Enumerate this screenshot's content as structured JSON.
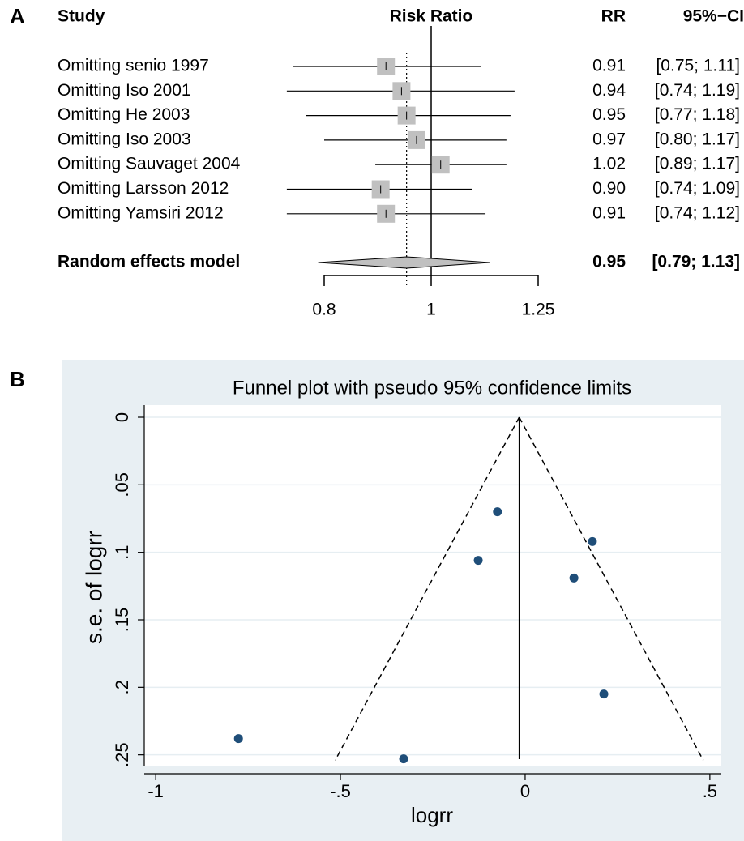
{
  "chart_data": [
    {
      "type": "forest",
      "panel_label": "A",
      "headers": {
        "study": "Study",
        "plot": "Risk Ratio",
        "estimate": "RR",
        "interval": "95%−CI"
      },
      "categories": [
        "Omitting senio 1997",
        "Omitting Iso 2001",
        "Omitting He 2003",
        "Omitting Iso 2003",
        "Omitting Sauvaget 2004",
        "Omitting Larsson 2012",
        "Omitting Yamsiri 2012"
      ],
      "values": [
        0.91,
        0.94,
        0.95,
        0.97,
        1.02,
        0.9,
        0.91
      ],
      "value_labels": [
        "0.91",
        "0.94",
        "0.95",
        "0.97",
        "1.02",
        "0.90",
        "0.91"
      ],
      "lower": [
        0.75,
        0.74,
        0.77,
        0.8,
        0.89,
        0.74,
        0.74
      ],
      "upper": [
        1.11,
        1.19,
        1.18,
        1.17,
        1.17,
        1.09,
        1.12
      ],
      "interval_labels": [
        "[0.75; 1.11]",
        "[0.74; 1.19]",
        "[0.77; 1.18]",
        "[0.80; 1.17]",
        "[0.89; 1.17]",
        "[0.74; 1.09]",
        "[0.74; 1.12]"
      ],
      "summary": {
        "name": "Random effects model",
        "value": 0.95,
        "lower": 0.79,
        "upper": 1.13,
        "interval_label": "[0.79; 1.13]"
      },
      "xlim": [
        0.8,
        1.25
      ],
      "xticks": [
        0.8,
        1,
        1.25
      ],
      "log_scale": true,
      "reference_line": 1,
      "color": "#c0c0c0"
    },
    {
      "type": "scatter",
      "panel_label": "B",
      "title": "Funnel plot with pseudo 95% confidence limits",
      "xlabel": "logrr",
      "ylabel": "s.e. of logrr",
      "x": [
        -0.776,
        -0.329,
        -0.127,
        -0.075,
        0.132,
        0.182,
        0.213
      ],
      "values": [
        0.238,
        0.253,
        0.106,
        0.07,
        0.119,
        0.092,
        0.205
      ],
      "color": "#1f4e79",
      "xlim": [
        -1.031,
        0.531
      ],
      "xticks": [
        -1,
        {
          "value": -0.5,
          "label": "-.5"
        },
        0,
        {
          "value": 0.5,
          "label": ".5"
        }
      ],
      "ylim": [
        -0.009,
        0.258
      ],
      "yticks": [
        0,
        {
          "value": 0.05,
          "label": ".05"
        },
        {
          "value": 0.1,
          "label": ".1"
        },
        {
          "value": 0.15,
          "label": ".15"
        },
        {
          "value": 0.2,
          "label": ".2"
        },
        {
          "value": 0.25,
          "label": ".25"
        }
      ],
      "y_reversed": true,
      "grid": true,
      "reference_x": -0.016,
      "limit_lines": [
        {
          "x": [
            -0.016,
            -0.514
          ],
          "y": [
            0,
            0.254
          ]
        },
        {
          "x": [
            -0.016,
            0.482
          ],
          "y": [
            0,
            0.254
          ]
        }
      ]
    }
  ]
}
